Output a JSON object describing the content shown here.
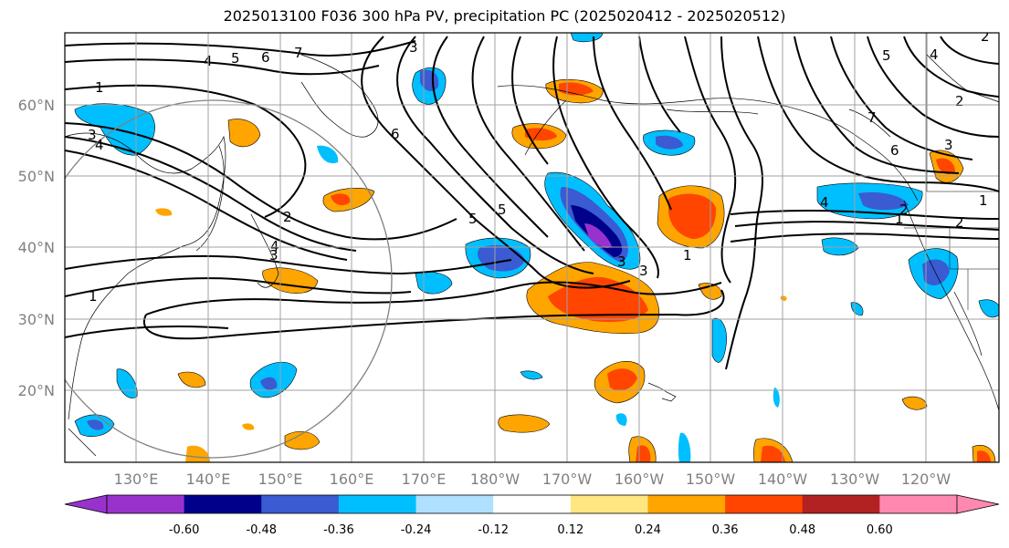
{
  "title": "2025013100 F036 300 hPa PV, precipitation PC (2025020412 - 2025020512)",
  "lat_labels": [
    "60°N",
    "50°N",
    "40°N",
    "30°N",
    "20°N"
  ],
  "lon_labels": [
    "130°E",
    "140°E",
    "150°E",
    "160°E",
    "170°E",
    "180°W",
    "170°W",
    "160°W",
    "150°W",
    "140°W",
    "130°W",
    "120°W"
  ],
  "colorbar": {
    "ticks": [
      "-0.60",
      "-0.48",
      "-0.36",
      "-0.24",
      "-0.12",
      "0.12",
      "0.24",
      "0.36",
      "0.48",
      "0.60"
    ],
    "colors": [
      "#9932cc",
      "#00008b",
      "#3a5bd1",
      "#00bfff",
      "#b0e0ff",
      "#ffffff",
      "#ffe680",
      "#ffa500",
      "#ff4500",
      "#b22222",
      "#ff88b0"
    ]
  },
  "contour_labels": [
    "1",
    "4",
    "5",
    "6",
    "7",
    "3",
    "3",
    "4",
    "1",
    "6",
    "3",
    "5",
    "2",
    "4",
    "5",
    "1",
    "3",
    "3",
    "1",
    "2",
    "4",
    "5",
    "7",
    "6",
    "3",
    "2",
    "2",
    "4",
    "2",
    "1"
  ]
}
